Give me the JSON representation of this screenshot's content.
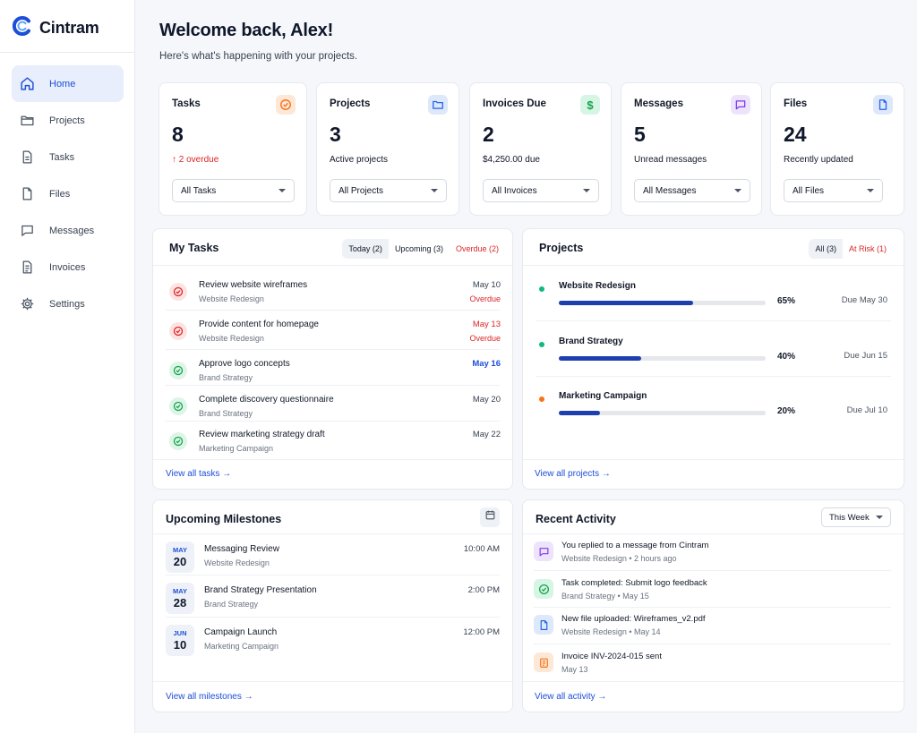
{
  "app": {
    "name": "Cintram",
    "logo_icon": "c-logo-icon",
    "accent": "#1d4ed8"
  },
  "sidebar": {
    "items": [
      {
        "label": "Home",
        "icon": "home-icon",
        "active": true
      },
      {
        "label": "Projects",
        "icon": "folder-icon"
      },
      {
        "label": "Tasks",
        "icon": "document-icon"
      },
      {
        "label": "Files",
        "icon": "file-icon"
      },
      {
        "label": "Messages",
        "icon": "chat-icon"
      },
      {
        "label": "Invoices",
        "icon": "invoice-icon"
      },
      {
        "label": "Settings",
        "icon": "gear-icon"
      }
    ]
  },
  "header": {
    "title": "Welcome back, Alex!",
    "subtitle": "Here's what's happening with your projects."
  },
  "stats": [
    {
      "title": "Tasks",
      "value": "8",
      "sub": "2 overdue",
      "sub_prefix": "↑",
      "select": "All Tasks",
      "icon": "check-circle-icon",
      "icon_bg": "#fde8d7",
      "icon_color": "#f97316"
    },
    {
      "title": "Projects",
      "value": "3",
      "sub": "Active projects",
      "select": "All Projects",
      "icon": "folder-icon",
      "icon_bg": "#dde8fb",
      "icon_color": "#2563eb"
    },
    {
      "title": "Invoices Due",
      "value": "2",
      "sub": "$4,250.00 due",
      "select": "All Invoices",
      "icon": "dollar-icon",
      "icon_bg": "#d7f5e5",
      "icon_color": "#16a34a"
    },
    {
      "title": "Messages",
      "value": "5",
      "sub": "Unread messages",
      "select": "All Messages",
      "icon": "chat-icon",
      "icon_bg": "#ede4fc",
      "icon_color": "#7c3aed"
    },
    {
      "title": "Files",
      "value": "24",
      "sub": "Recently updated",
      "select": "All Files",
      "icon": "file-icon",
      "icon_bg": "#dde8fb",
      "icon_color": "#2563eb"
    }
  ],
  "my_tasks": {
    "title": "My Tasks",
    "tabs": [
      {
        "label": "Today (2)",
        "active": true
      },
      {
        "label": "Upcoming (3)"
      },
      {
        "label": "Overdue (2)",
        "red": true
      }
    ],
    "rows": [
      {
        "name": "Review website wireframes",
        "project": "Website Redesign",
        "date": "May 10",
        "status": "Overdue",
        "state": "overdue"
      },
      {
        "name": "Provide content for homepage",
        "project": "Website Redesign",
        "date": "May 13",
        "status": "Overdue",
        "state": "overdue"
      },
      {
        "name": "Approve logo concepts",
        "project": "Brand Strategy",
        "date": "May 16",
        "status": "",
        "state": "upcoming-blue"
      },
      {
        "name": "Complete discovery questionnaire",
        "project": "Brand Strategy",
        "date": "May 20",
        "status": "",
        "state": "ok"
      },
      {
        "name": "Review marketing strategy draft",
        "project": "Marketing Campaign",
        "date": "May 22",
        "status": "",
        "state": "ok"
      }
    ],
    "link": "View all tasks →"
  },
  "projects": {
    "title": "Projects",
    "tabs": [
      {
        "label": "All (3)",
        "active": true
      },
      {
        "label": "At Risk (1)",
        "red": true
      }
    ],
    "rows": [
      {
        "name": "Website Redesign",
        "progress": 65,
        "progress_label": "65%",
        "due": "Due May 30",
        "dot": "#10b981"
      },
      {
        "name": "Brand Strategy",
        "progress": 40,
        "progress_label": "40%",
        "due": "Due Jun 15",
        "dot": "#10b981"
      },
      {
        "name": "Marketing Campaign",
        "progress": 20,
        "progress_label": "20%",
        "due": "Due Jul 10",
        "dot": "#f97316"
      }
    ],
    "link": "View all projects →"
  },
  "milestones": {
    "title": "Upcoming Milestones",
    "icon": "calendar-icon",
    "rows": [
      {
        "month": "MAY",
        "day": "20",
        "name": "Messaging Review",
        "project": "Website Redesign",
        "time": "10:00 AM"
      },
      {
        "month": "MAY",
        "day": "28",
        "name": "Brand Strategy Presentation",
        "project": "Brand Strategy",
        "time": "2:00 PM"
      },
      {
        "month": "JUN",
        "day": "10",
        "name": "Campaign Launch",
        "project": "Marketing Campaign",
        "time": "12:00 PM"
      }
    ],
    "link": "View all milestones →"
  },
  "activity": {
    "title": "Recent Activity",
    "filter": "This Week",
    "rows": [
      {
        "text": "You replied to a message from Cintram",
        "meta": "Website Redesign • 2 hours ago",
        "icon": "chat-icon",
        "bg": "#ede4fc",
        "color": "#7c3aed"
      },
      {
        "text": "Task completed: Submit logo feedback",
        "meta": "Brand Strategy • May 15",
        "icon": "check-circle-icon",
        "bg": "#d7f5e5",
        "color": "#16a34a"
      },
      {
        "text": "New file uploaded: Wireframes_v2.pdf",
        "meta": "Website Redesign • May 14",
        "icon": "file-icon",
        "bg": "#dde8fb",
        "color": "#2563eb"
      },
      {
        "text": "Invoice INV-2024-015 sent",
        "meta": "May 13",
        "icon": "invoice-icon",
        "bg": "#fde8d7",
        "color": "#f97316"
      }
    ],
    "link": "View all activity →"
  }
}
